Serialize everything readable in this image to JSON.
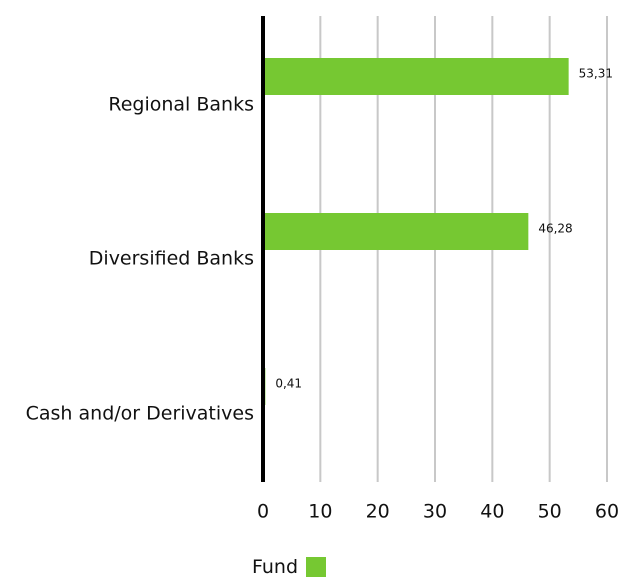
{
  "chart_data": {
    "type": "bar",
    "orientation": "horizontal",
    "categories": [
      "Regional Banks",
      "Diversified Banks",
      "Cash and/or Derivatives"
    ],
    "series": [
      {
        "name": "Fund",
        "values": [
          53.31,
          46.28,
          0.41
        ],
        "labels": [
          "53,31",
          "46,28",
          "0,41"
        ]
      }
    ],
    "x_ticks": [
      "0",
      "10",
      "20",
      "30",
      "40",
      "50",
      "60"
    ],
    "xlim": [
      0,
      60
    ],
    "grid": true,
    "legend_position": "bottom",
    "bar_color": "#76c832",
    "grid_color": "#c8c8c8"
  }
}
